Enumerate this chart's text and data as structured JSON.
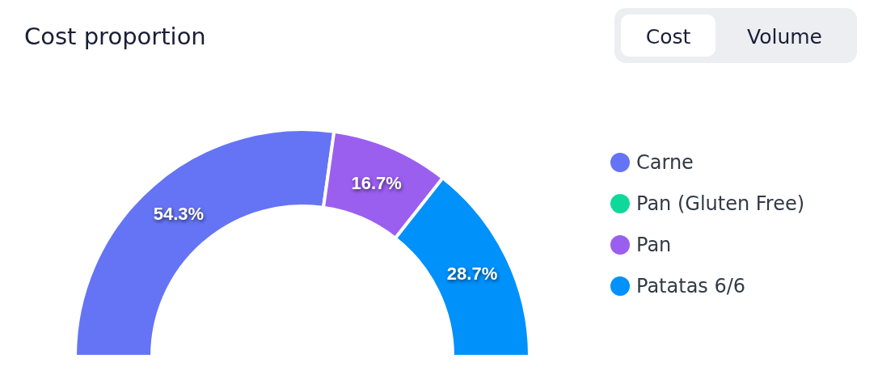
{
  "chart_data": {
    "type": "donut",
    "title": "Cost proportion",
    "annotations": [
      "Cost",
      "Volume"
    ],
    "categories": [
      "Carne",
      "Pan (Gluten Free)",
      "Pan",
      "Patatas 6/6"
    ],
    "values": [
      54.3,
      0,
      16.7,
      28.7
    ],
    "colors": [
      "#6574f5",
      "#10d89b",
      "#9b5ff0",
      "#0091fb"
    ],
    "value_labels": [
      "54.3%",
      null,
      "16.7%",
      "28.7%"
    ],
    "legend": "right"
  }
}
